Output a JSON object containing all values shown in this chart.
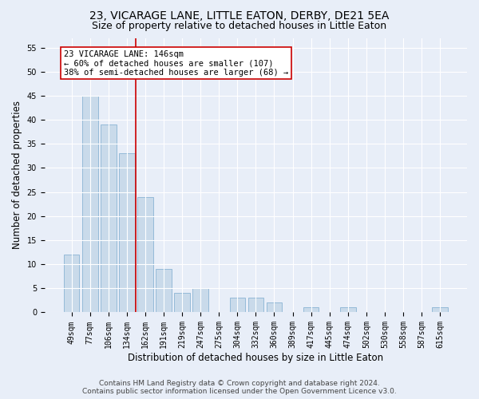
{
  "title": "23, VICARAGE LANE, LITTLE EATON, DERBY, DE21 5EA",
  "subtitle": "Size of property relative to detached houses in Little Eaton",
  "xlabel": "Distribution of detached houses by size in Little Eaton",
  "ylabel": "Number of detached properties",
  "categories": [
    "49sqm",
    "77sqm",
    "106sqm",
    "134sqm",
    "162sqm",
    "191sqm",
    "219sqm",
    "247sqm",
    "275sqm",
    "304sqm",
    "332sqm",
    "360sqm",
    "389sqm",
    "417sqm",
    "445sqm",
    "474sqm",
    "502sqm",
    "530sqm",
    "558sqm",
    "587sqm",
    "615sqm"
  ],
  "values": [
    12,
    45,
    39,
    33,
    24,
    9,
    4,
    5,
    0,
    3,
    3,
    2,
    0,
    1,
    0,
    1,
    0,
    0,
    0,
    0,
    1
  ],
  "bar_color": "#c9daea",
  "bar_edge_color": "#8ab4d4",
  "vline_x": 3.5,
  "vline_color": "#cc0000",
  "annotation_text": "23 VICARAGE LANE: 146sqm\n← 60% of detached houses are smaller (107)\n38% of semi-detached houses are larger (68) →",
  "annotation_box_color": "#ffffff",
  "annotation_box_edge_color": "#cc0000",
  "ylim": [
    0,
    57
  ],
  "yticks": [
    0,
    5,
    10,
    15,
    20,
    25,
    30,
    35,
    40,
    45,
    50,
    55
  ],
  "bg_color": "#e8eef8",
  "plot_bg_color": "#e8eef8",
  "grid_color": "#ffffff",
  "footer_line1": "Contains HM Land Registry data © Crown copyright and database right 2024.",
  "footer_line2": "Contains public sector information licensed under the Open Government Licence v3.0.",
  "title_fontsize": 10,
  "subtitle_fontsize": 9,
  "xlabel_fontsize": 8.5,
  "ylabel_fontsize": 8.5,
  "tick_fontsize": 7,
  "annotation_fontsize": 7.5,
  "footer_fontsize": 6.5
}
